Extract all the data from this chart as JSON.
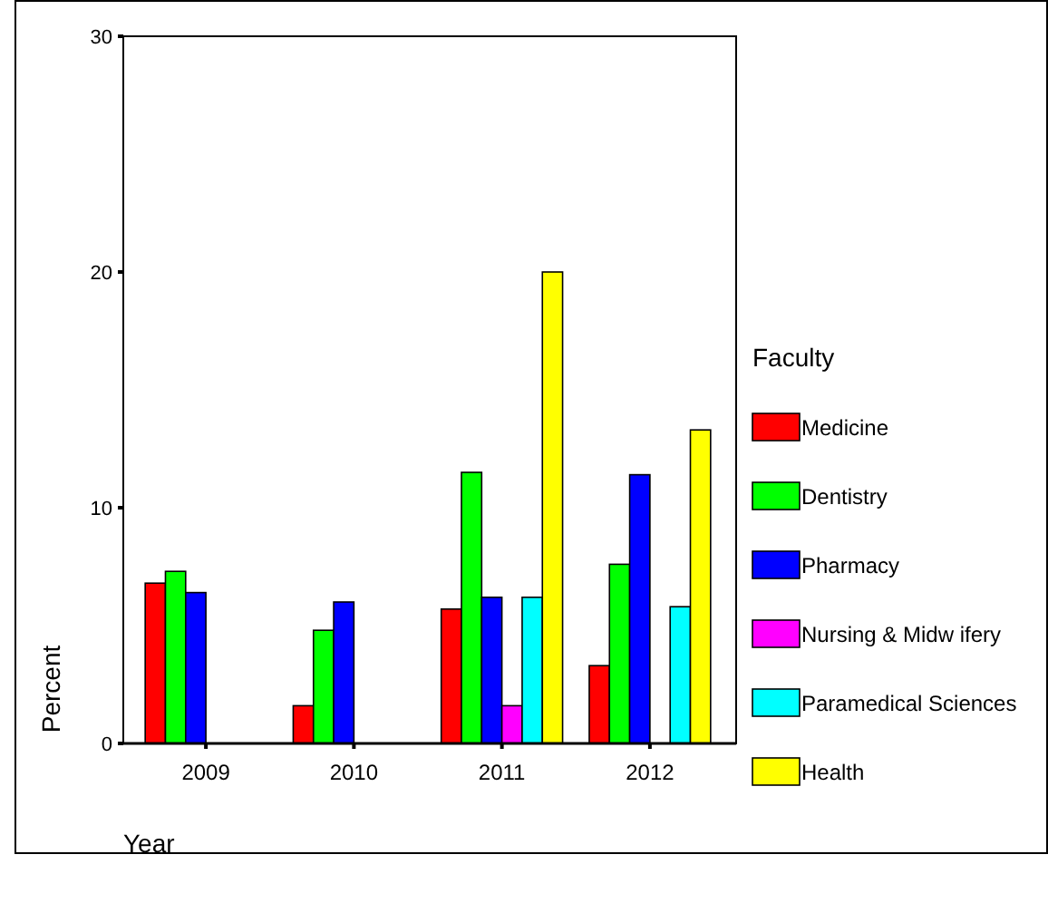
{
  "chart_data": {
    "type": "bar",
    "xlabel": "Year",
    "ylabel": "Percent",
    "legend_title": "Faculty",
    "categories": [
      "2009",
      "2010",
      "2011",
      "2012"
    ],
    "series": [
      {
        "name": "Medicine",
        "color": "#ff0000",
        "values": [
          6.8,
          1.6,
          5.7,
          3.3
        ]
      },
      {
        "name": "Dentistry",
        "color": "#00ff00",
        "values": [
          7.3,
          4.8,
          11.5,
          7.6
        ]
      },
      {
        "name": "Pharmacy",
        "color": "#0000ff",
        "values": [
          6.4,
          6.0,
          6.2,
          11.4
        ]
      },
      {
        "name": "Nursing & Midw ifery",
        "color": "#ff00ff",
        "values": [
          null,
          null,
          1.6,
          null
        ]
      },
      {
        "name": "Paramedical Sciences",
        "color": "#00ffff",
        "values": [
          null,
          null,
          6.2,
          5.8
        ]
      },
      {
        "name": "Health",
        "color": "#ffff00",
        "values": [
          null,
          null,
          20.0,
          13.3
        ]
      }
    ],
    "ylim": [
      0,
      30
    ],
    "yticks": [
      0,
      10,
      20,
      30
    ],
    "grid": false,
    "legend": "right"
  }
}
